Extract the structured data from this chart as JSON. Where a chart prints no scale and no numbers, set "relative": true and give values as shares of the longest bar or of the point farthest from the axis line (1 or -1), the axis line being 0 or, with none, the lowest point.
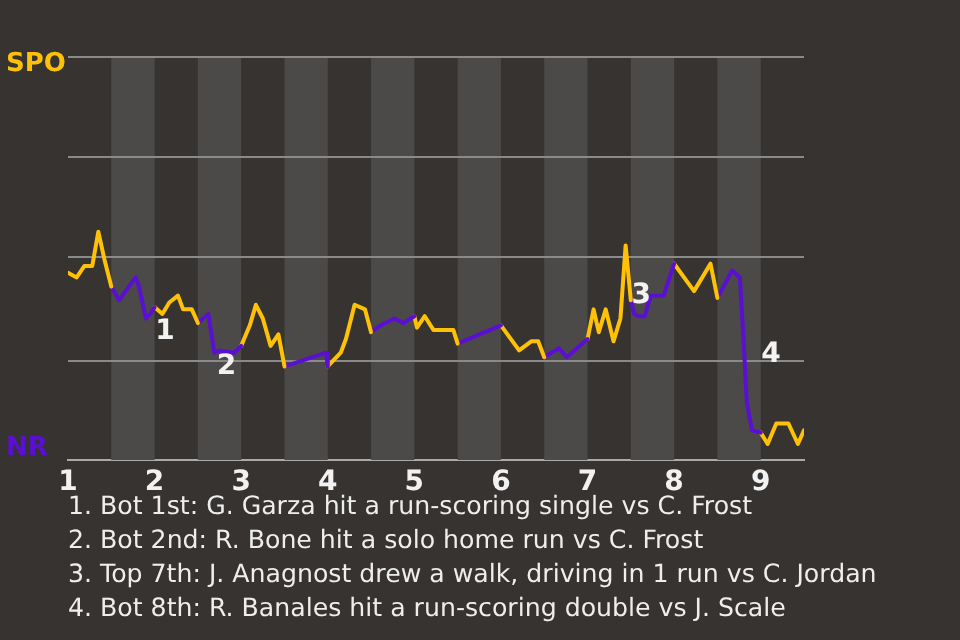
{
  "chart_data": {
    "type": "line",
    "relative": true,
    "xlim": [
      1,
      9.5
    ],
    "xticks": [
      1,
      2,
      3,
      4,
      5,
      6,
      7,
      8,
      9
    ],
    "legend": false,
    "marker": "none",
    "line_style": "solid",
    "series": [
      {
        "color": "#ffc107",
        "x": [
          1.0,
          1.1,
          1.19,
          1.28,
          1.35,
          1.42,
          1.5
        ],
        "values": [
          0.82,
          0.8,
          0.85,
          0.85,
          1,
          0.88,
          0.76
        ]
      },
      {
        "color": "#5a0fd2",
        "x": [
          1.5,
          1.59,
          1.78,
          1.82,
          1.9,
          1.95,
          2.0
        ],
        "values": [
          0.76,
          0.7,
          0.8,
          0.76,
          0.62,
          0.64,
          0.67
        ]
      },
      {
        "color": "#ffc107",
        "x": [
          2.0,
          2.09,
          2.17,
          2.27,
          2.33,
          2.43,
          2.5
        ],
        "values": [
          0.67,
          0.64,
          0.69,
          0.72,
          0.66,
          0.66,
          0.6
        ]
      },
      {
        "color": "#5a0fd2",
        "x": [
          2.5,
          2.62,
          2.69,
          2.74,
          2.92,
          3.0
        ],
        "values": [
          0.6,
          0.64,
          0.47,
          0.48,
          0.47,
          0.5
        ]
      },
      {
        "color": "#ffc107",
        "x": [
          3.0,
          3.1,
          3.17,
          3.25,
          3.34,
          3.43,
          3.5
        ],
        "values": [
          0.5,
          0.59,
          0.68,
          0.62,
          0.5,
          0.55,
          0.41
        ]
      },
      {
        "color": "#5a0fd2",
        "x": [
          3.5,
          3.66,
          3.98,
          4.0
        ],
        "values": [
          0.41,
          0.43,
          0.47,
          0.41
        ]
      },
      {
        "color": "#ffc107",
        "x": [
          4.0,
          4.15,
          4.21,
          4.31,
          4.43,
          4.5
        ],
        "values": [
          0.41,
          0.47,
          0.53,
          0.68,
          0.66,
          0.56
        ]
      },
      {
        "color": "#5a0fd2",
        "x": [
          4.5,
          4.61,
          4.77,
          4.87,
          5.0
        ],
        "values": [
          0.56,
          0.59,
          0.62,
          0.6,
          0.63
        ]
      },
      {
        "color": "#ffc107",
        "x": [
          5.0,
          5.03,
          5.12,
          5.22,
          5.45,
          5.5
        ],
        "values": [
          0.63,
          0.58,
          0.63,
          0.57,
          0.57,
          0.51
        ]
      },
      {
        "color": "#5a0fd2",
        "x": [
          5.5,
          6.0
        ],
        "values": [
          0.51,
          0.59
        ]
      },
      {
        "color": "#ffc107",
        "x": [
          6.0,
          6.21,
          6.35,
          6.43,
          6.5
        ],
        "values": [
          0.59,
          0.48,
          0.52,
          0.52,
          0.45
        ]
      },
      {
        "color": "#5a0fd2",
        "x": [
          6.5,
          6.67,
          6.76,
          7.0
        ],
        "values": [
          0.45,
          0.49,
          0.45,
          0.53
        ]
      },
      {
        "color": "#ffc107",
        "x": [
          7.0,
          7.07,
          7.13,
          7.21,
          7.3,
          7.38,
          7.44,
          7.5
        ],
        "values": [
          0.53,
          0.66,
          0.56,
          0.66,
          0.52,
          0.62,
          0.94,
          0.7
        ]
      },
      {
        "color": "#5a0fd2",
        "x": [
          7.5,
          7.54,
          7.59,
          7.66,
          7.73,
          7.88,
          8.0
        ],
        "values": [
          0.7,
          0.64,
          0.63,
          0.63,
          0.72,
          0.72,
          0.86
        ]
      },
      {
        "color": "#ffc107",
        "x": [
          8.0,
          8.23,
          8.42,
          8.5
        ],
        "values": [
          0.86,
          0.74,
          0.86,
          0.71
        ]
      },
      {
        "color": "#5a0fd2",
        "x": [
          8.5,
          8.67,
          8.76,
          8.78,
          8.81,
          8.84,
          8.9,
          9.0
        ],
        "values": [
          0.71,
          0.83,
          0.8,
          0.67,
          0.47,
          0.25,
          0.13,
          0.12
        ]
      },
      {
        "color": "#ffc107",
        "x": [
          9.0,
          9.08,
          9.18,
          9.32,
          9.43,
          9.5
        ],
        "values": [
          0.12,
          0.07,
          0.16,
          0.16,
          0.07,
          0.13
        ]
      }
    ],
    "ref_lines": [
      {
        "axis": "y",
        "value": 0.44,
        "color": "#8a8a8a"
      },
      {
        "axis": "y",
        "value": 0.89,
        "color": "#8a8a8a"
      },
      {
        "axis": "y",
        "value": 1.33,
        "color": "#8a8a8a"
      },
      {
        "axis": "y",
        "value": 1.77,
        "color": "#8a8a8a"
      }
    ],
    "bands": [
      {
        "axis": "x",
        "from": 1.5,
        "to": 2,
        "color": "#4b4a49"
      },
      {
        "axis": "x",
        "from": 2.5,
        "to": 3,
        "color": "#4b4a49"
      },
      {
        "axis": "x",
        "from": 3.5,
        "to": 4,
        "color": "#4b4a49"
      },
      {
        "axis": "x",
        "from": 4.5,
        "to": 5,
        "color": "#4b4a49"
      },
      {
        "axis": "x",
        "from": 5.5,
        "to": 6,
        "color": "#4b4a49"
      },
      {
        "axis": "x",
        "from": 6.5,
        "to": 7,
        "color": "#4b4a49"
      },
      {
        "axis": "x",
        "from": 7.5,
        "to": 8,
        "color": "#4b4a49"
      },
      {
        "axis": "x",
        "from": 8.5,
        "to": 9,
        "color": "#4b4a49"
      }
    ],
    "annotations": [
      "SPO",
      "NR",
      {
        "text": "1",
        "x": 2.12,
        "y": 0.56
      },
      {
        "text": "2",
        "x": 2.83,
        "y": 0.41
      },
      {
        "text": "3",
        "x": 7.62,
        "y": 0.72
      },
      {
        "text": "4",
        "x": 9.12,
        "y": 0.46
      },
      "1. Bot 1st: G. Garza hit a run-scoring single vs C. Frost",
      "2. Bot 2nd: R. Bone hit a solo home run vs C. Frost",
      "3. Top 7th: J. Anagnost drew a walk, driving in 1 run vs C. Jordan",
      "4. Bot 8th: R. Banales hit a run-scoring double vs J. Scale"
    ]
  }
}
